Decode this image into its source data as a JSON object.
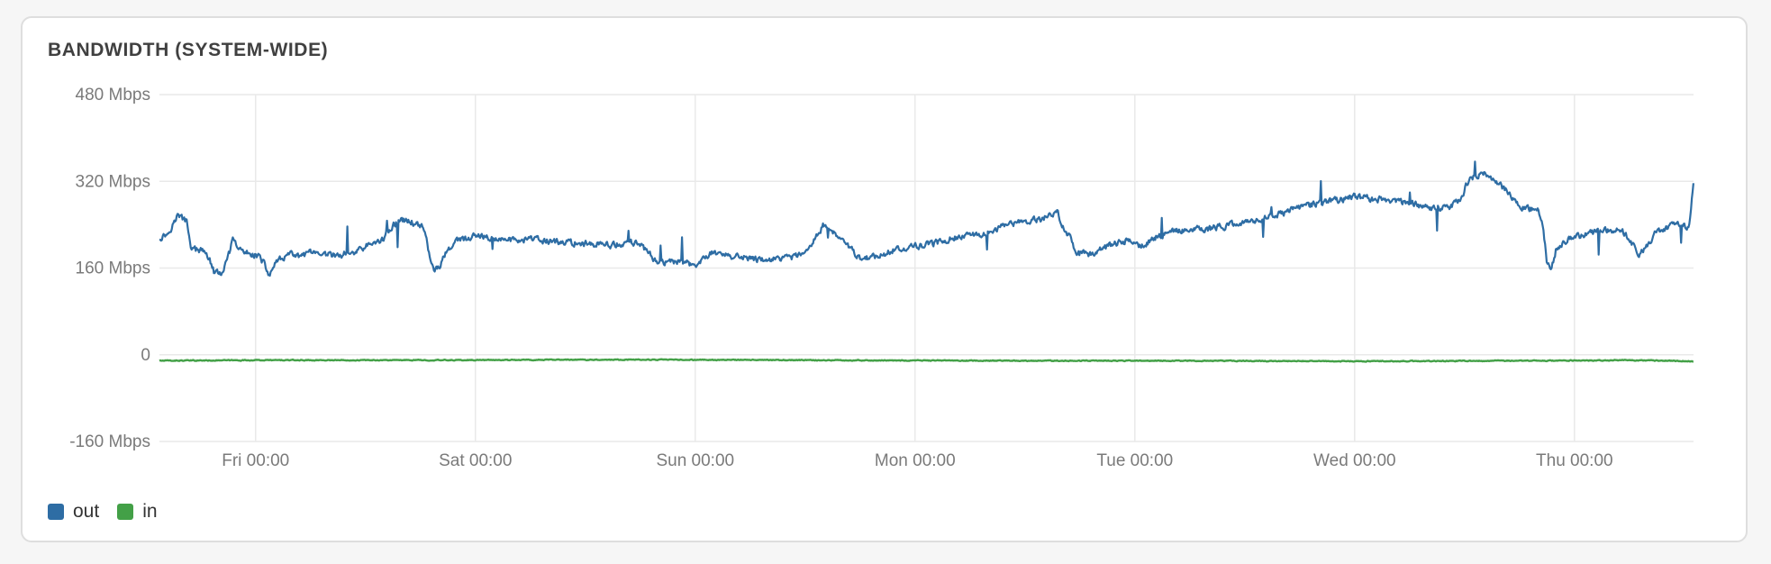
{
  "title": "BANDWIDTH (SYSTEM-WIDE)",
  "chart_data": {
    "type": "line",
    "ylabel": "",
    "xlabel": "",
    "ylim": [
      -160,
      480
    ],
    "yticks": [
      480,
      320,
      160,
      0,
      -160
    ],
    "ytick_labels": [
      "480 Mbps",
      "320 Mbps",
      "160 Mbps",
      "0",
      "-160 Mbps"
    ],
    "x_start_hour": -10.5,
    "x_end_hour": 157,
    "xticks": [
      0,
      24,
      48,
      72,
      96,
      120,
      144
    ],
    "xtick_labels": [
      "Fri 00:00",
      "Sat 00:00",
      "Sun 00:00",
      "Mon 00:00",
      "Tue 00:00",
      "Wed 00:00",
      "Thu 00:00"
    ],
    "grid": true,
    "legend_position": "bottom-left",
    "series": [
      {
        "name": "out",
        "color": "#2e6da4",
        "keypoints": [
          [
            -10.5,
            215
          ],
          [
            -9.5,
            225
          ],
          [
            -8.5,
            258
          ],
          [
            -7.5,
            245
          ],
          [
            -7,
            195
          ],
          [
            -5.5,
            190
          ],
          [
            -5,
            175
          ],
          [
            -4.5,
            150
          ],
          [
            -3.5,
            152
          ],
          [
            -2.5,
            210
          ],
          [
            -1.5,
            190
          ],
          [
            0,
            185
          ],
          [
            0.5,
            180
          ],
          [
            1,
            165
          ],
          [
            1.5,
            145
          ],
          [
            2,
            165
          ],
          [
            3,
            180
          ],
          [
            4,
            185
          ],
          [
            5,
            180
          ],
          [
            6,
            190
          ],
          [
            7,
            180
          ],
          [
            8,
            185
          ],
          [
            9,
            182
          ],
          [
            10,
            188
          ],
          [
            11,
            190
          ],
          [
            12,
            200
          ],
          [
            13,
            205
          ],
          [
            14,
            215
          ],
          [
            15,
            240
          ],
          [
            16,
            248
          ],
          [
            17,
            245
          ],
          [
            18,
            240
          ],
          [
            18.5,
            230
          ],
          [
            19,
            180
          ],
          [
            19.5,
            155
          ],
          [
            20,
            160
          ],
          [
            21,
            195
          ],
          [
            22,
            210
          ],
          [
            24,
            218
          ],
          [
            27,
            212
          ],
          [
            30,
            213
          ],
          [
            33,
            208
          ],
          [
            36,
            205
          ],
          [
            39,
            202
          ],
          [
            41.5,
            208
          ],
          [
            42.5,
            195
          ],
          [
            43.5,
            175
          ],
          [
            45,
            170
          ],
          [
            47,
            172
          ],
          [
            48,
            160
          ],
          [
            49,
            180
          ],
          [
            50,
            190
          ],
          [
            52,
            182
          ],
          [
            55,
            175
          ],
          [
            58,
            178
          ],
          [
            60,
            185
          ],
          [
            61,
            212
          ],
          [
            62,
            240
          ],
          [
            63.5,
            218
          ],
          [
            65,
            195
          ],
          [
            66,
            178
          ],
          [
            68,
            182
          ],
          [
            70,
            195
          ],
          [
            72,
            200
          ],
          [
            74,
            205
          ],
          [
            76,
            215
          ],
          [
            78,
            220
          ],
          [
            80,
            225
          ],
          [
            82,
            240
          ],
          [
            84,
            245
          ],
          [
            86,
            252
          ],
          [
            87.5,
            265
          ],
          [
            88,
            240
          ],
          [
            89,
            215
          ],
          [
            89.5,
            188
          ],
          [
            91,
            185
          ],
          [
            93,
            200
          ],
          [
            95,
            210
          ],
          [
            96,
            205
          ],
          [
            97,
            200
          ],
          [
            98,
            215
          ],
          [
            100,
            228
          ],
          [
            102,
            232
          ],
          [
            104,
            232
          ],
          [
            106,
            238
          ],
          [
            108,
            245
          ],
          [
            110,
            252
          ],
          [
            112,
            260
          ],
          [
            114,
            272
          ],
          [
            116,
            280
          ],
          [
            118,
            285
          ],
          [
            120,
            292
          ],
          [
            122,
            288
          ],
          [
            124,
            285
          ],
          [
            126,
            280
          ],
          [
            128,
            272
          ],
          [
            130,
            270
          ],
          [
            131.5,
            285
          ],
          [
            132.5,
            325
          ],
          [
            134,
            335
          ],
          [
            135.5,
            320
          ],
          [
            137,
            295
          ],
          [
            138.5,
            270
          ],
          [
            140,
            268
          ],
          [
            140.5,
            240
          ],
          [
            141,
            170
          ],
          [
            141.5,
            160
          ],
          [
            142,
            195
          ],
          [
            143,
            210
          ],
          [
            145,
            222
          ],
          [
            147,
            228
          ],
          [
            149,
            232
          ],
          [
            150,
            215
          ],
          [
            151,
            185
          ],
          [
            152,
            205
          ],
          [
            153,
            228
          ],
          [
            155,
            240
          ],
          [
            156.5,
            235
          ],
          [
            157,
            315
          ]
        ],
        "noise": 9
      },
      {
        "name": "in",
        "color": "#43a047",
        "keypoints": [
          [
            -10.5,
            -11
          ],
          [
            0,
            -10
          ],
          [
            20,
            -10
          ],
          [
            40,
            -9
          ],
          [
            60,
            -10
          ],
          [
            80,
            -11
          ],
          [
            100,
            -11
          ],
          [
            120,
            -12
          ],
          [
            140,
            -11
          ],
          [
            150,
            -10
          ],
          [
            157,
            -12
          ]
        ],
        "noise": 1.2
      }
    ]
  }
}
